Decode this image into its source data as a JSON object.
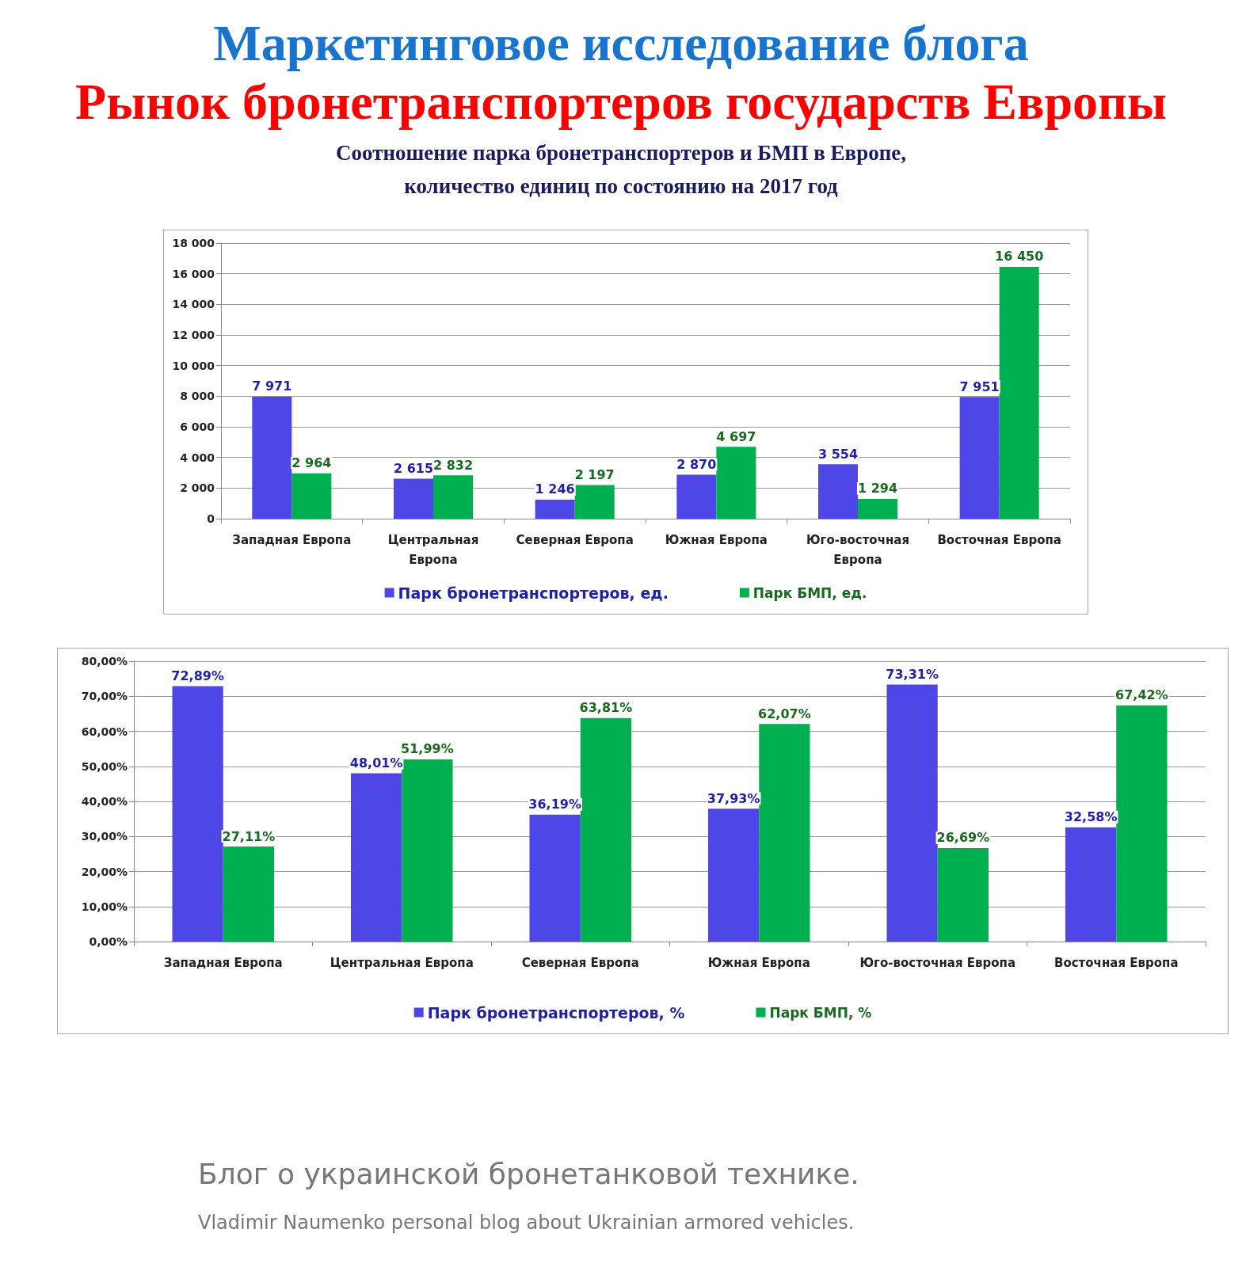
{
  "chart_data": [
    {
      "type": "bar",
      "title": "Соотношение парка бронетранспортеров и БМП в Европе, количество единиц по состоянию на 2017 год",
      "annotations": [
        "Маркетинговое исследование блога",
        "Рынок бронетранспортеров государств Европы",
        "Блог о украинской бронетанковой технике.",
        "Vladimir Naumenko personal blog about Ukrainian armored vehicles."
      ],
      "categories": [
        "Западная Европа",
        "Центральная Европа",
        "Северная Европа",
        "Южная Европа",
        "Юго-восточная Европа",
        "Восточная Европа"
      ],
      "series": [
        {
          "name": "Парк бронетранспортеров, ед.",
          "color": "#4f46e8",
          "values": [
            7971,
            2615,
            1246,
            2870,
            3554,
            7951
          ],
          "value_labels": [
            "7 971",
            "2 615",
            "1 246",
            "2 870",
            "3 554",
            "7 951"
          ]
        },
        {
          "name": "Парк БМП, ед.",
          "color": "#00b050",
          "values": [
            2964,
            2832,
            2197,
            4697,
            1294,
            16450
          ],
          "value_labels": [
            "2 964",
            "2 832",
            "2 197",
            "4 697",
            "1 294",
            "16 450"
          ]
        }
      ],
      "ylim": [
        0,
        18000
      ],
      "yticks": [
        {
          "value": 0,
          "label": "0"
        },
        {
          "value": 2000,
          "label": "2 000"
        },
        {
          "value": 4000,
          "label": "4 000"
        },
        {
          "value": 6000,
          "label": "6 000"
        },
        {
          "value": 8000,
          "label": "8 000"
        },
        {
          "value": 10000,
          "label": "10 000"
        },
        {
          "value": 12000,
          "label": "12 000"
        },
        {
          "value": 14000,
          "label": "14 000"
        },
        {
          "value": 16000,
          "label": "16 000"
        },
        {
          "value": 18000,
          "label": "18 000"
        }
      ],
      "grid": "y",
      "legend": "bottom"
    },
    {
      "type": "bar",
      "categories": [
        "Западная Европа",
        "Центральная Европа",
        "Северная Европа",
        "Южная Европа",
        "Юго-восточная Европа",
        "Восточная Европа"
      ],
      "series": [
        {
          "name": "Парк бронетранспортеров, %",
          "color": "#4f46e8",
          "values": [
            72.89,
            48.01,
            36.19,
            37.93,
            73.31,
            32.58
          ],
          "value_labels": [
            "72,89%",
            "48,01%",
            "36,19%",
            "37,93%",
            "73,31%",
            "32,58%"
          ]
        },
        {
          "name": "Парк БМП, %",
          "color": "#00b050",
          "values": [
            27.11,
            51.99,
            63.81,
            62.07,
            26.69,
            67.42
          ],
          "value_labels": [
            "27,11%",
            "51,99%",
            "63,81%",
            "62,07%",
            "26,69%",
            "67,42%"
          ]
        }
      ],
      "ylim": [
        0,
        80
      ],
      "yticks": [
        {
          "value": 0,
          "label": "0,00%"
        },
        {
          "value": 10,
          "label": "10,00%"
        },
        {
          "value": 20,
          "label": "20,00%"
        },
        {
          "value": 30,
          "label": "30,00%"
        },
        {
          "value": 40,
          "label": "40,00%"
        },
        {
          "value": 50,
          "label": "50,00%"
        },
        {
          "value": 60,
          "label": "60,00%"
        },
        {
          "value": 70,
          "label": "70,00%"
        },
        {
          "value": 80,
          "label": "80,00%"
        }
      ],
      "grid": "y",
      "legend": "bottom"
    }
  ]
}
